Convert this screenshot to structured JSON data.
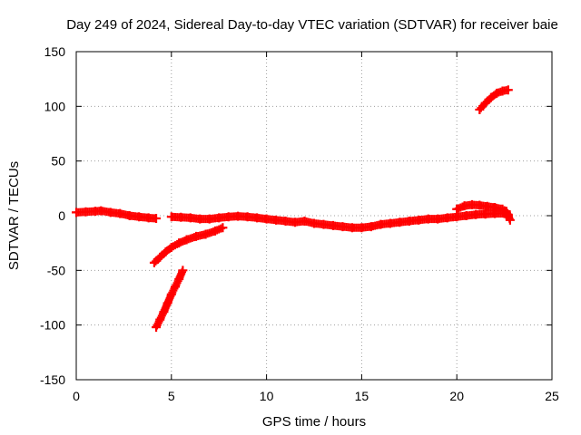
{
  "chart_data": {
    "type": "scatter",
    "title": "Day 249 of 2024, Sidereal Day-to-day VTEC variation (SDTVAR) for receiver baie",
    "xlabel": "GPS time / hours",
    "ylabel": "SDTVAR / TECUs",
    "xlim": [
      0,
      25
    ],
    "ylim": [
      -150,
      150
    ],
    "xticks": [
      0,
      5,
      10,
      15,
      20,
      25
    ],
    "yticks": [
      -150,
      -100,
      -50,
      0,
      50,
      100,
      150
    ],
    "grid": true,
    "marker": "+",
    "color": "#ff0000",
    "series": [
      {
        "points": [
          [
            0.0,
            3
          ],
          [
            0.5,
            3.5
          ],
          [
            1.0,
            4
          ],
          [
            1.3,
            4.5
          ],
          [
            1.8,
            3
          ],
          [
            2.3,
            2
          ],
          [
            2.8,
            0
          ],
          [
            3.3,
            -1
          ],
          [
            3.8,
            -2
          ],
          [
            4.2,
            -2.5
          ]
        ]
      },
      {
        "points": [
          [
            5.0,
            -1
          ],
          [
            5.5,
            -1.5
          ],
          [
            6.0,
            -2
          ],
          [
            6.5,
            -3
          ],
          [
            7.0,
            -3
          ],
          [
            7.5,
            -2
          ],
          [
            8.0,
            -1
          ],
          [
            8.5,
            -0.5
          ],
          [
            9.0,
            -1
          ],
          [
            9.5,
            -2
          ],
          [
            10.0,
            -3
          ],
          [
            10.5,
            -4
          ],
          [
            11.0,
            -5
          ],
          [
            11.5,
            -6
          ],
          [
            12.0,
            -5
          ],
          [
            12.5,
            -7
          ],
          [
            13.0,
            -8
          ],
          [
            13.5,
            -9
          ],
          [
            14.0,
            -10
          ],
          [
            14.5,
            -11
          ],
          [
            15.0,
            -11
          ],
          [
            15.5,
            -10
          ],
          [
            16.0,
            -8
          ],
          [
            16.5,
            -7
          ],
          [
            17.0,
            -6
          ],
          [
            17.5,
            -5
          ],
          [
            18.0,
            -4
          ],
          [
            18.5,
            -3
          ],
          [
            19.0,
            -3
          ],
          [
            19.5,
            -2
          ],
          [
            20.0,
            -1
          ],
          [
            20.5,
            0
          ],
          [
            21.0,
            1
          ],
          [
            21.5,
            1.5
          ],
          [
            22.0,
            2
          ],
          [
            22.5,
            2
          ],
          [
            22.7,
            1
          ]
        ]
      },
      {
        "points": [
          [
            20.0,
            6
          ],
          [
            20.4,
            9
          ],
          [
            20.8,
            10
          ],
          [
            21.2,
            9.5
          ],
          [
            21.6,
            8.5
          ],
          [
            22.0,
            7.5
          ],
          [
            22.4,
            6
          ],
          [
            22.6,
            4
          ],
          [
            22.7,
            0
          ],
          [
            22.8,
            -4
          ]
        ]
      },
      {
        "points": [
          [
            4.1,
            -43
          ],
          [
            4.4,
            -38
          ],
          [
            4.7,
            -33
          ],
          [
            5.0,
            -29
          ],
          [
            5.4,
            -25
          ],
          [
            5.8,
            -22
          ],
          [
            6.3,
            -19
          ],
          [
            6.8,
            -17
          ],
          [
            7.3,
            -14
          ],
          [
            7.7,
            -11
          ]
        ]
      },
      {
        "points": [
          [
            4.2,
            -102
          ],
          [
            4.4,
            -95
          ],
          [
            4.6,
            -88
          ],
          [
            4.8,
            -80
          ],
          [
            5.0,
            -72
          ],
          [
            5.2,
            -65
          ],
          [
            5.4,
            -58
          ],
          [
            5.6,
            -50
          ]
        ]
      },
      {
        "points": [
          [
            21.2,
            97
          ],
          [
            21.5,
            103
          ],
          [
            21.8,
            108
          ],
          [
            22.1,
            112
          ],
          [
            22.4,
            114
          ],
          [
            22.7,
            115
          ]
        ]
      }
    ]
  }
}
